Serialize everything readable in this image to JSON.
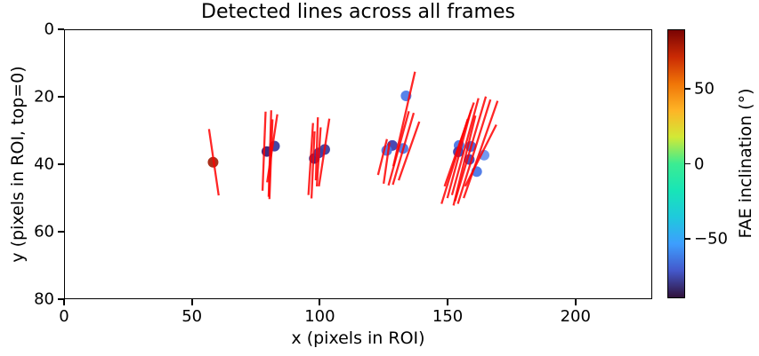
{
  "chart_data": {
    "type": "scatter",
    "title": "Detected lines across all frames",
    "xlabel": "x (pixels in ROI)",
    "ylabel": "y (pixels in ROI, top=0)",
    "xlim": [
      0,
      230
    ],
    "ylim": [
      0,
      80
    ],
    "y_inverted": true,
    "grid": false,
    "xticks": [
      0,
      50,
      100,
      150,
      200
    ],
    "yticks": [
      0,
      20,
      40,
      60,
      80
    ],
    "line_color": "#ff0000",
    "line_width": 2.3,
    "line_opacity": 0.85,
    "marker_radius": 6,
    "lines": [
      [
        56.5,
        29.5,
        60.3,
        49.3
      ],
      [
        78.7,
        24.3,
        77.5,
        47.9
      ],
      [
        80.9,
        23.9,
        79.9,
        49.7
      ],
      [
        83.3,
        25.1,
        79.3,
        45.4
      ],
      [
        81.4,
        26.6,
        80.2,
        50.4
      ],
      [
        97.3,
        27.7,
        95.5,
        49.2
      ],
      [
        99.2,
        26.0,
        98.4,
        44.8
      ],
      [
        100.3,
        29.0,
        98.8,
        46.6
      ],
      [
        103.7,
        26.4,
        99.6,
        46.6
      ],
      [
        97.9,
        30.2,
        96.7,
        50.2
      ],
      [
        137.3,
        12.4,
        128.8,
        40.6
      ],
      [
        134.9,
        24.2,
        126.9,
        46.3
      ],
      [
        136.8,
        24.7,
        128.6,
        46.1
      ],
      [
        139.0,
        27.3,
        130.9,
        44.8
      ],
      [
        126.3,
        32.5,
        122.8,
        43.2
      ],
      [
        127.3,
        33.5,
        125.0,
        45.8
      ],
      [
        160.4,
        21.6,
        148.9,
        46.6
      ],
      [
        162.2,
        20.3,
        151.8,
        49.2
      ],
      [
        165.1,
        19.8,
        153.0,
        51.0
      ],
      [
        166.9,
        20.7,
        154.1,
        51.8
      ],
      [
        169.7,
        21.1,
        156.4,
        50.1
      ],
      [
        169.2,
        28.2,
        157.0,
        46.6
      ],
      [
        159.3,
        23.8,
        150.0,
        50.1
      ],
      [
        161.0,
        25.5,
        152.4,
        52.3
      ],
      [
        158.0,
        26.5,
        147.7,
        51.8
      ]
    ],
    "points": [
      {
        "x": 58.1,
        "y": 39.4,
        "color": "#a6250f"
      },
      {
        "x": 79.2,
        "y": 36.2,
        "color": "#372179"
      },
      {
        "x": 82.2,
        "y": 34.6,
        "color": "#3c3a9e"
      },
      {
        "x": 97.8,
        "y": 38.3,
        "color": "#322385"
      },
      {
        "x": 99.6,
        "y": 36.6,
        "color": "#3b35a2"
      },
      {
        "x": 101.9,
        "y": 35.6,
        "color": "#3d3f9e"
      },
      {
        "x": 133.8,
        "y": 19.6,
        "color": "#4f7ce8"
      },
      {
        "x": 128.4,
        "y": 34.4,
        "color": "#3f3fae"
      },
      {
        "x": 126.2,
        "y": 35.9,
        "color": "#4b77e6"
      },
      {
        "x": 132.6,
        "y": 35.3,
        "color": "#4b77e6"
      },
      {
        "x": 154.6,
        "y": 34.4,
        "color": "#4b77e6"
      },
      {
        "x": 159.2,
        "y": 34.7,
        "color": "#4a5ed3"
      },
      {
        "x": 164.4,
        "y": 37.3,
        "color": "#6b93f0"
      },
      {
        "x": 158.6,
        "y": 38.6,
        "color": "#4348bb"
      },
      {
        "x": 161.5,
        "y": 42.2,
        "color": "#4b77e6"
      },
      {
        "x": 154.3,
        "y": 36.3,
        "color": "#3f3fae"
      }
    ],
    "colorbar": {
      "label": "FAE inclination (°)",
      "vmin": -90,
      "vmax": 90,
      "ticks": [
        {
          "value": 50,
          "label": "50"
        },
        {
          "value": 0,
          "label": "0"
        },
        {
          "value": -50,
          "label": "−50"
        }
      ],
      "colormap": "turbo",
      "stops_top_to_bottom": [
        "#7a0403",
        "#ca2a04",
        "#f07507",
        "#feb426",
        "#d2e936",
        "#3bec92",
        "#18e5b7",
        "#1fc9dd",
        "#3d9efe",
        "#4458cb",
        "#30123b"
      ]
    }
  }
}
